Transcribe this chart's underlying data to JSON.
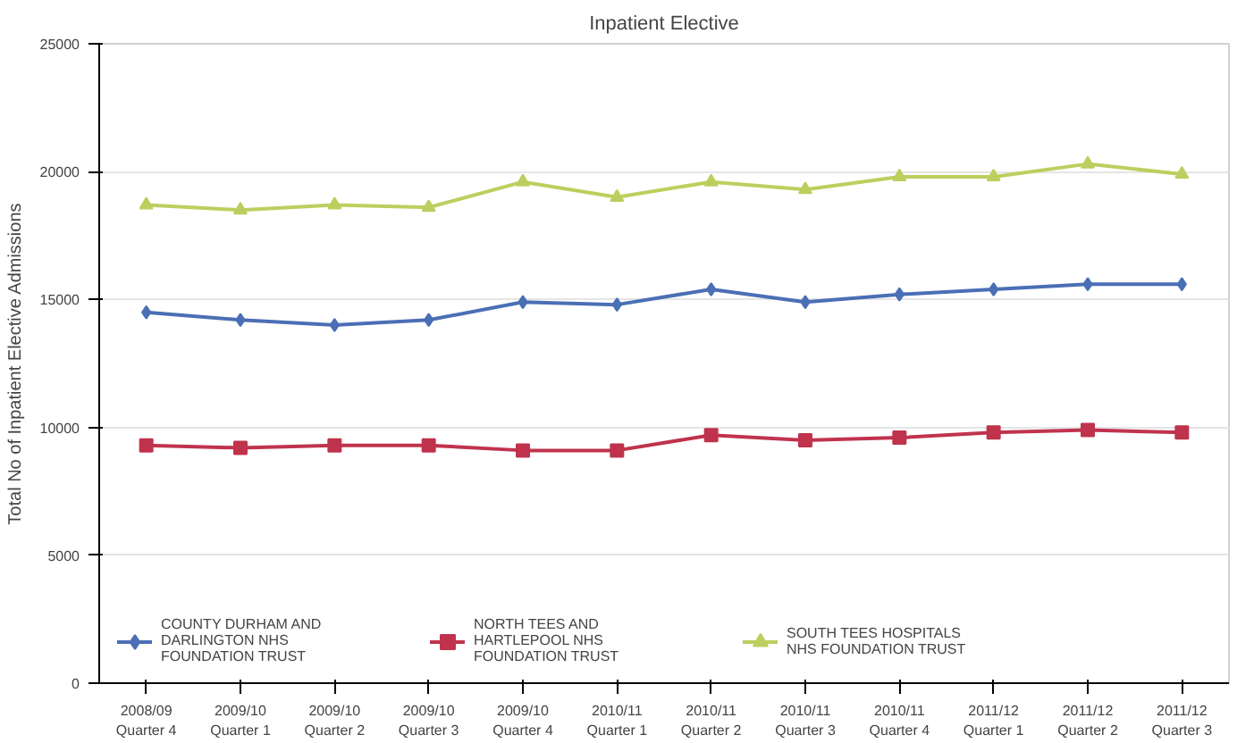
{
  "chart_data": {
    "type": "line",
    "title": "Inpatient Elective",
    "ylabel": "Total No of Inpatient Elective Admissions",
    "categories": [
      "2008/09 Quarter 4",
      "2009/10 Quarter 1",
      "2009/10 Quarter 2",
      "2009/10 Quarter 3",
      "2009/10 Quarter 4",
      "2010/11 Quarter 1",
      "2010/11 Quarter 2",
      "2010/11 Quarter 3",
      "2010/11 Quarter 4",
      "2011/12 Quarter 1",
      "2011/12 Quarter 2",
      "2011/12 Quarter 3"
    ],
    "series": [
      {
        "name": "COUNTY DURHAM AND DARLINGTON NHS FOUNDATION TRUST",
        "color": "#4a6fb5",
        "marker": "diamond",
        "values": [
          14500,
          14200,
          14000,
          14200,
          14900,
          14800,
          15400,
          14900,
          15200,
          15400,
          15600,
          15600
        ]
      },
      {
        "name": "NORTH TEES AND HARTLEPOOL NHS FOUNDATION TRUST",
        "color": "#c0334d",
        "marker": "square",
        "values": [
          9300,
          9200,
          9300,
          9300,
          9100,
          9100,
          9700,
          9500,
          9600,
          9800,
          9900,
          9800
        ]
      },
      {
        "name": "SOUTH TEES HOSPITALS NHS FOUNDATION TRUST",
        "color": "#bccf5e",
        "marker": "triangle",
        "values": [
          18700,
          18500,
          18700,
          18600,
          19600,
          19000,
          19600,
          19300,
          19800,
          19800,
          20300,
          19900
        ]
      }
    ],
    "ylim": [
      0,
      25000
    ],
    "yticks": [
      0,
      5000,
      10000,
      15000,
      20000,
      25000
    ],
    "grid": "y",
    "legend": "bottom left",
    "line_style": "solid"
  }
}
